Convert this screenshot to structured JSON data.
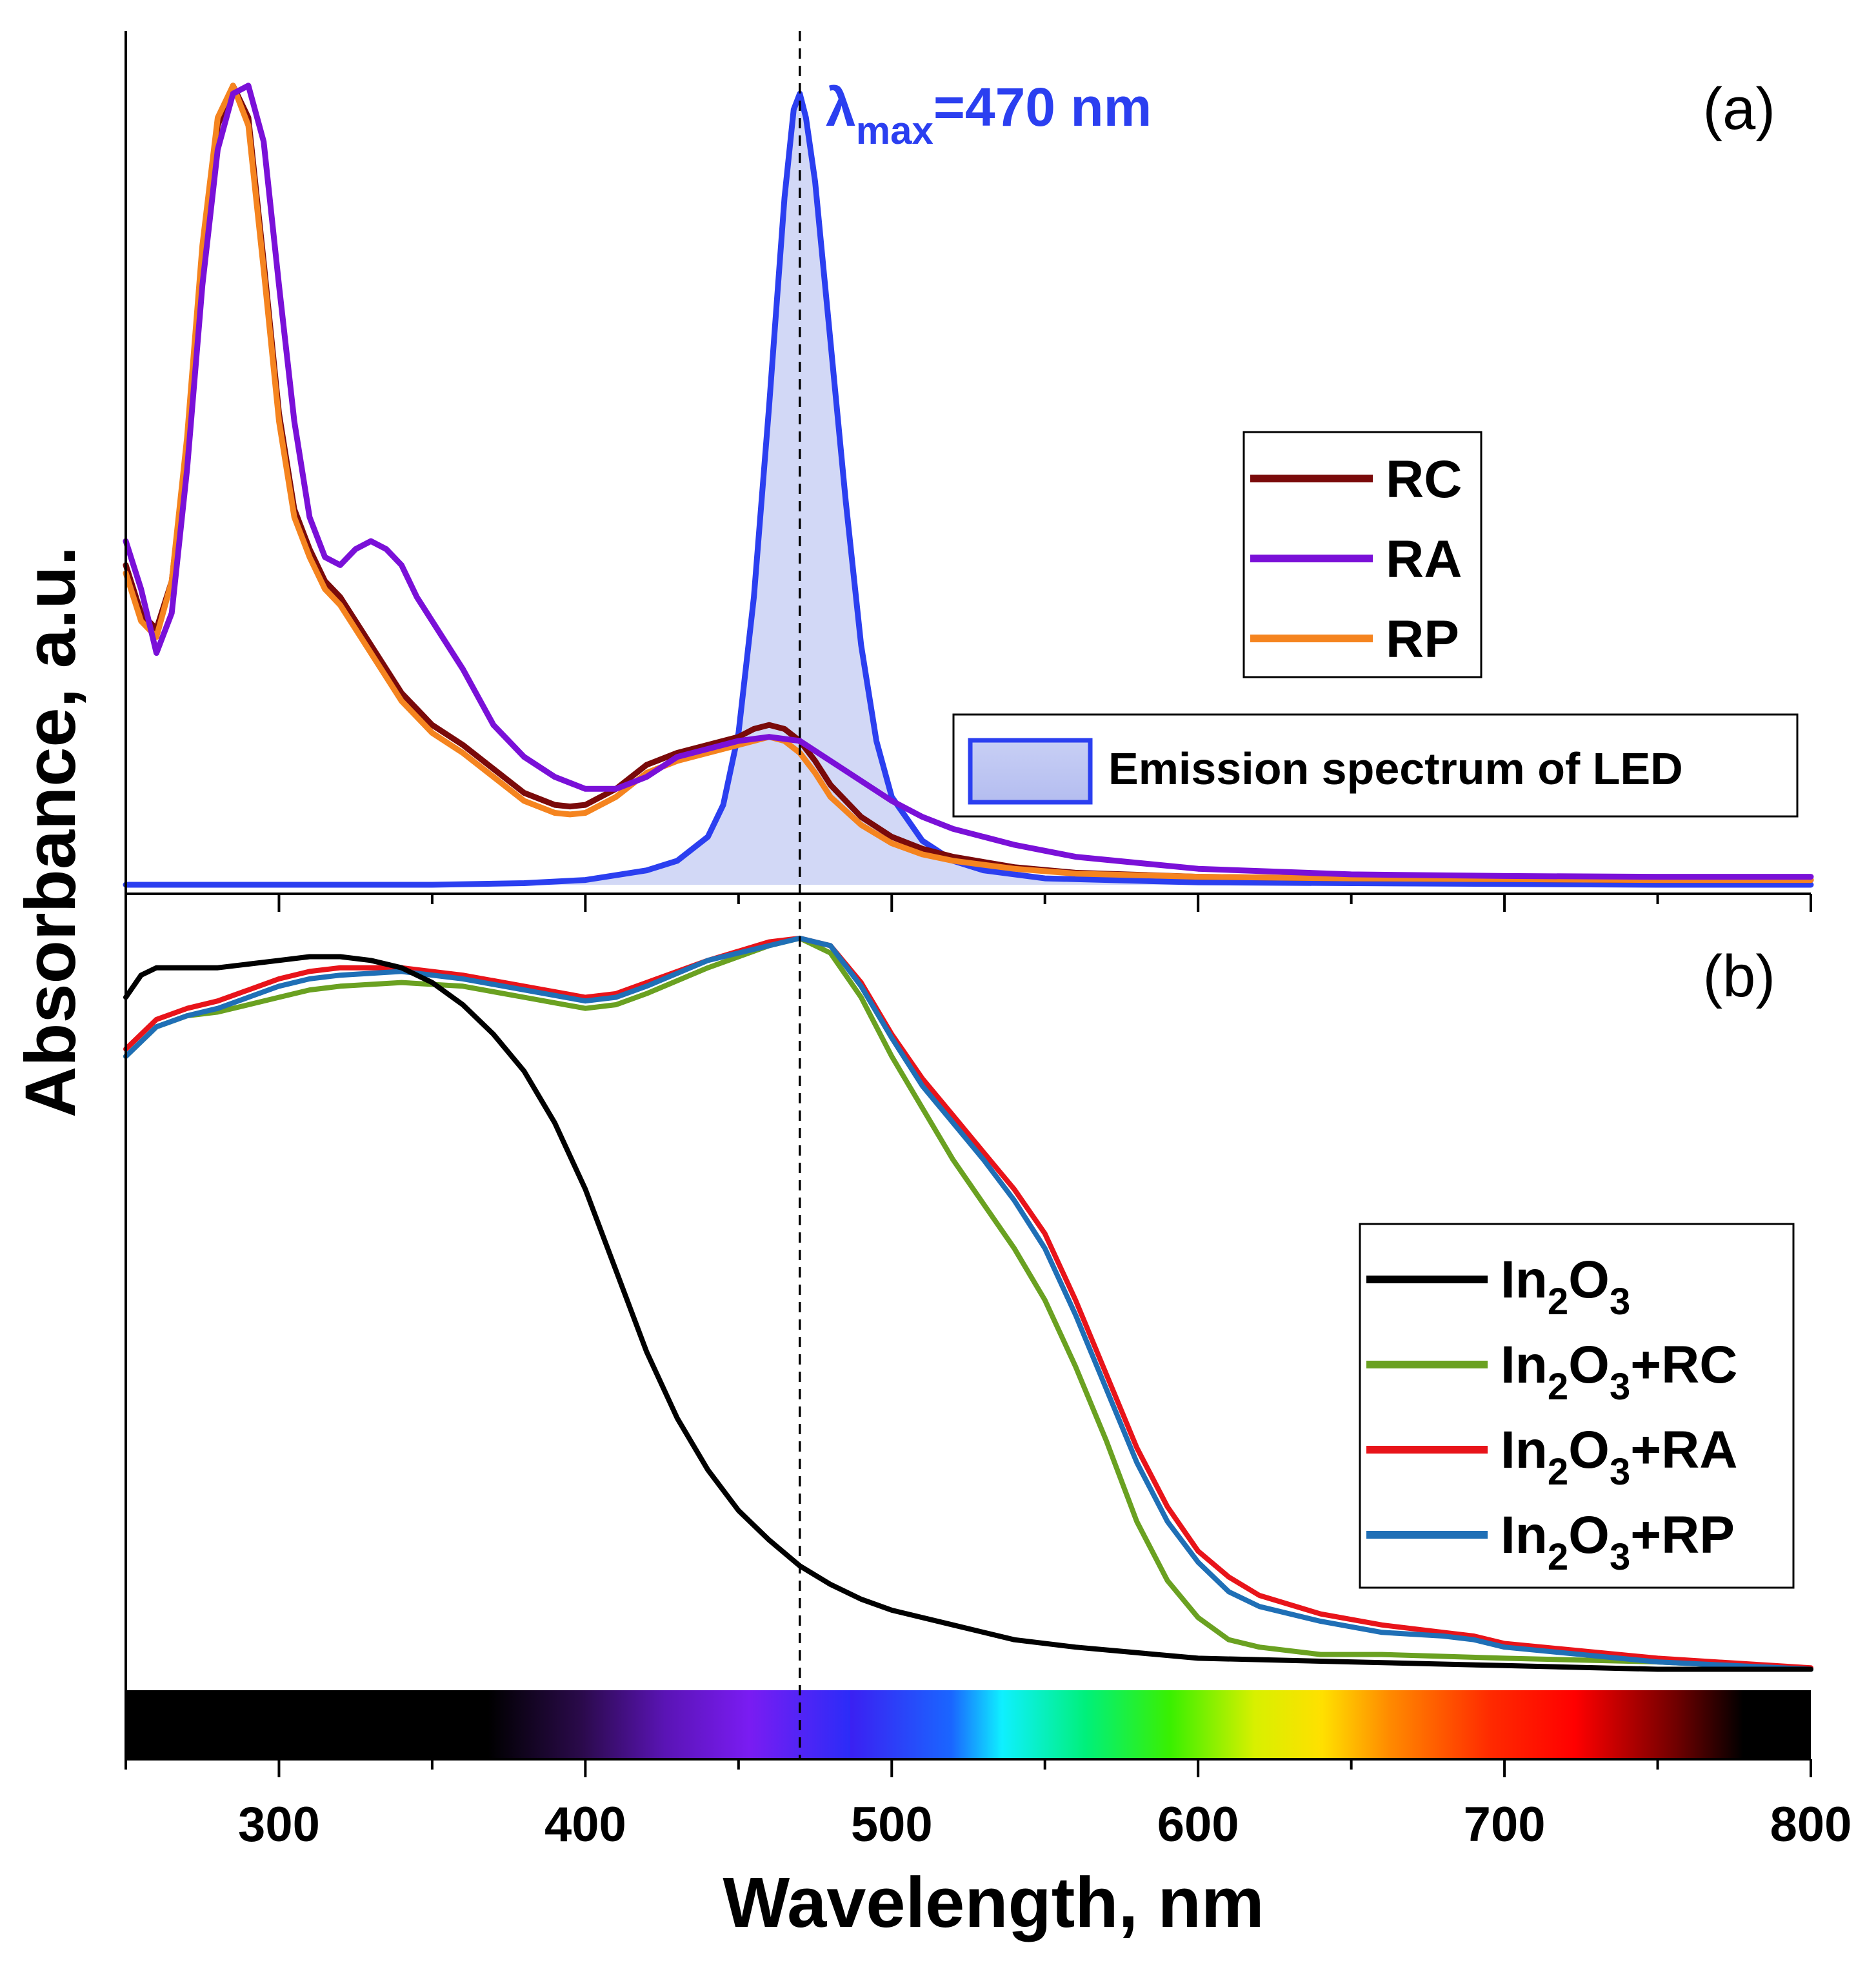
{
  "chart_data": [
    {
      "panel": "a",
      "type": "line",
      "panel_label": "(a)",
      "xlim": [
        250,
        800
      ],
      "ylim": [
        0,
        1.02
      ],
      "annotation": {
        "prefix": "λ",
        "sub": "max",
        "suffix": "=470 nm",
        "x": 470,
        "color": "#2b3ff0"
      },
      "legend": {
        "placement": "right-center"
      },
      "series": [
        {
          "name": "RC",
          "color": "#7a0a0a",
          "x": [
            250,
            255,
            260,
            265,
            270,
            275,
            280,
            285,
            290,
            295,
            300,
            305,
            310,
            315,
            320,
            325,
            330,
            335,
            340,
            345,
            350,
            360,
            370,
            380,
            390,
            395,
            400,
            410,
            420,
            430,
            440,
            450,
            455,
            460,
            465,
            470,
            475,
            480,
            490,
            500,
            510,
            520,
            540,
            560,
            600,
            650,
            700,
            750,
            800
          ],
          "y": [
            0.4,
            0.34,
            0.32,
            0.38,
            0.55,
            0.78,
            0.95,
            1.0,
            0.96,
            0.78,
            0.59,
            0.47,
            0.42,
            0.38,
            0.36,
            0.33,
            0.3,
            0.27,
            0.24,
            0.22,
            0.2,
            0.175,
            0.145,
            0.115,
            0.1,
            0.098,
            0.1,
            0.12,
            0.15,
            0.165,
            0.175,
            0.185,
            0.195,
            0.2,
            0.195,
            0.18,
            0.155,
            0.125,
            0.085,
            0.06,
            0.045,
            0.035,
            0.022,
            0.015,
            0.01,
            0.008,
            0.007,
            0.006,
            0.006
          ]
        },
        {
          "name": "RA",
          "color": "#7a10d8",
          "x": [
            250,
            255,
            260,
            265,
            270,
            275,
            280,
            285,
            290,
            295,
            300,
            305,
            310,
            315,
            320,
            325,
            330,
            335,
            340,
            345,
            350,
            360,
            370,
            380,
            390,
            400,
            410,
            420,
            430,
            440,
            450,
            460,
            470,
            480,
            490,
            500,
            510,
            520,
            540,
            560,
            600,
            650,
            700,
            750,
            800
          ],
          "y": [
            0.43,
            0.37,
            0.29,
            0.34,
            0.52,
            0.75,
            0.92,
            0.99,
            1.0,
            0.93,
            0.75,
            0.58,
            0.46,
            0.41,
            0.4,
            0.42,
            0.43,
            0.42,
            0.4,
            0.36,
            0.33,
            0.27,
            0.2,
            0.16,
            0.135,
            0.12,
            0.12,
            0.135,
            0.16,
            0.17,
            0.18,
            0.185,
            0.18,
            0.155,
            0.13,
            0.105,
            0.085,
            0.07,
            0.05,
            0.035,
            0.02,
            0.013,
            0.011,
            0.01,
            0.01
          ]
        },
        {
          "name": "RP",
          "color": "#f5841f",
          "x": [
            250,
            255,
            260,
            265,
            270,
            275,
            280,
            285,
            290,
            295,
            300,
            305,
            310,
            315,
            320,
            325,
            330,
            335,
            340,
            345,
            350,
            360,
            370,
            380,
            390,
            395,
            400,
            410,
            420,
            430,
            440,
            450,
            455,
            460,
            465,
            470,
            475,
            480,
            490,
            500,
            510,
            520,
            540,
            560,
            600,
            650,
            700,
            750,
            800
          ],
          "y": [
            0.39,
            0.33,
            0.31,
            0.38,
            0.56,
            0.8,
            0.96,
            1.0,
            0.95,
            0.77,
            0.58,
            0.46,
            0.41,
            0.37,
            0.35,
            0.32,
            0.29,
            0.26,
            0.23,
            0.21,
            0.19,
            0.165,
            0.135,
            0.105,
            0.09,
            0.088,
            0.09,
            0.11,
            0.14,
            0.155,
            0.165,
            0.175,
            0.18,
            0.185,
            0.18,
            0.165,
            0.14,
            0.11,
            0.075,
            0.052,
            0.038,
            0.03,
            0.02,
            0.014,
            0.01,
            0.008,
            0.007,
            0.006,
            0.006
          ]
        },
        {
          "name": "Emission spectrum of LED",
          "color": "#2b3ff0",
          "fill": "#d2d8f6",
          "x": [
            250,
            300,
            350,
            380,
            400,
            420,
            430,
            440,
            445,
            450,
            455,
            460,
            465,
            468,
            470,
            472,
            475,
            480,
            485,
            490,
            495,
            500,
            510,
            520,
            530,
            550,
            600,
            650,
            700,
            750,
            800
          ],
          "y": [
            0.0,
            0.0,
            0.0,
            0.002,
            0.006,
            0.018,
            0.03,
            0.06,
            0.1,
            0.19,
            0.36,
            0.6,
            0.86,
            0.97,
            0.99,
            0.96,
            0.88,
            0.68,
            0.48,
            0.3,
            0.18,
            0.11,
            0.055,
            0.03,
            0.018,
            0.008,
            0.003,
            0.002,
            0.001,
            0.0,
            0.0
          ]
        }
      ]
    },
    {
      "panel": "b",
      "type": "line",
      "panel_label": "(b)",
      "xlim": [
        250,
        800
      ],
      "ylim": [
        0,
        1.02
      ],
      "xlabel": "Wavelength, nm",
      "ylabel": "Absorbance, a.u.",
      "xticks": [
        300,
        400,
        500,
        600,
        700,
        800
      ],
      "xtick_labels": [
        "300",
        "400",
        "500",
        "600",
        "700",
        "800"
      ],
      "vline_x": 470,
      "legend": {
        "placement": "bottom-right"
      },
      "series": [
        {
          "name": "In2O3",
          "base": "In",
          "s1": "2",
          "mid": "O",
          "s2": "3",
          "tail": "",
          "color": "#000000",
          "x": [
            250,
            255,
            260,
            270,
            280,
            290,
            300,
            310,
            320,
            330,
            340,
            350,
            360,
            370,
            380,
            390,
            400,
            410,
            420,
            430,
            440,
            450,
            460,
            470,
            480,
            490,
            500,
            520,
            540,
            560,
            600,
            650,
            700,
            750,
            800
          ],
          "y": [
            0.92,
            0.95,
            0.96,
            0.96,
            0.96,
            0.965,
            0.97,
            0.975,
            0.975,
            0.97,
            0.96,
            0.94,
            0.91,
            0.87,
            0.82,
            0.75,
            0.66,
            0.55,
            0.44,
            0.35,
            0.28,
            0.225,
            0.185,
            0.15,
            0.125,
            0.105,
            0.09,
            0.07,
            0.05,
            0.04,
            0.025,
            0.02,
            0.015,
            0.01,
            0.01
          ]
        },
        {
          "name": "In2O3+RC",
          "base": "In",
          "s1": "2",
          "mid": "O",
          "s2": "3",
          "tail": "+RC",
          "color": "#6aa121",
          "x": [
            250,
            260,
            270,
            280,
            290,
            300,
            310,
            320,
            340,
            360,
            380,
            400,
            410,
            420,
            440,
            460,
            470,
            480,
            490,
            500,
            510,
            520,
            530,
            540,
            550,
            560,
            570,
            580,
            590,
            600,
            610,
            620,
            640,
            660,
            700,
            750,
            800
          ],
          "y": [
            0.84,
            0.88,
            0.895,
            0.9,
            0.91,
            0.92,
            0.93,
            0.935,
            0.94,
            0.935,
            0.92,
            0.905,
            0.91,
            0.925,
            0.96,
            0.99,
            1.0,
            0.98,
            0.92,
            0.84,
            0.77,
            0.7,
            0.64,
            0.58,
            0.51,
            0.42,
            0.32,
            0.21,
            0.13,
            0.08,
            0.05,
            0.04,
            0.03,
            0.03,
            0.025,
            0.02,
            0.01
          ]
        },
        {
          "name": "In2O3+RA",
          "base": "In",
          "s1": "2",
          "mid": "O",
          "s2": "3",
          "tail": "+RA",
          "color": "#e8141a",
          "x": [
            250,
            260,
            270,
            280,
            290,
            300,
            310,
            320,
            340,
            360,
            380,
            400,
            410,
            420,
            440,
            460,
            470,
            480,
            490,
            500,
            510,
            520,
            530,
            540,
            550,
            560,
            570,
            580,
            590,
            600,
            610,
            620,
            640,
            660,
            680,
            690,
            700,
            750,
            800
          ],
          "y": [
            0.85,
            0.89,
            0.905,
            0.915,
            0.93,
            0.945,
            0.955,
            0.96,
            0.96,
            0.95,
            0.935,
            0.92,
            0.925,
            0.94,
            0.97,
            0.995,
            1.0,
            0.99,
            0.94,
            0.87,
            0.81,
            0.76,
            0.71,
            0.66,
            0.6,
            0.51,
            0.41,
            0.31,
            0.23,
            0.17,
            0.135,
            0.11,
            0.085,
            0.07,
            0.06,
            0.055,
            0.045,
            0.025,
            0.012
          ]
        },
        {
          "name": "In2O3+RP",
          "base": "In",
          "s1": "2",
          "mid": "O",
          "s2": "3",
          "tail": "+RP",
          "color": "#1f6fb6",
          "x": [
            250,
            260,
            270,
            280,
            290,
            300,
            310,
            320,
            340,
            360,
            380,
            400,
            410,
            420,
            440,
            460,
            470,
            480,
            490,
            500,
            510,
            520,
            530,
            540,
            550,
            560,
            570,
            580,
            590,
            600,
            610,
            620,
            640,
            660,
            680,
            690,
            700,
            750,
            800
          ],
          "y": [
            0.84,
            0.88,
            0.895,
            0.905,
            0.92,
            0.935,
            0.945,
            0.95,
            0.955,
            0.945,
            0.93,
            0.915,
            0.92,
            0.935,
            0.97,
            0.99,
            1.0,
            0.99,
            0.935,
            0.865,
            0.8,
            0.75,
            0.7,
            0.645,
            0.58,
            0.49,
            0.39,
            0.29,
            0.21,
            0.155,
            0.115,
            0.095,
            0.075,
            0.06,
            0.055,
            0.05,
            0.04,
            0.02,
            0.01
          ]
        }
      ]
    }
  ]
}
